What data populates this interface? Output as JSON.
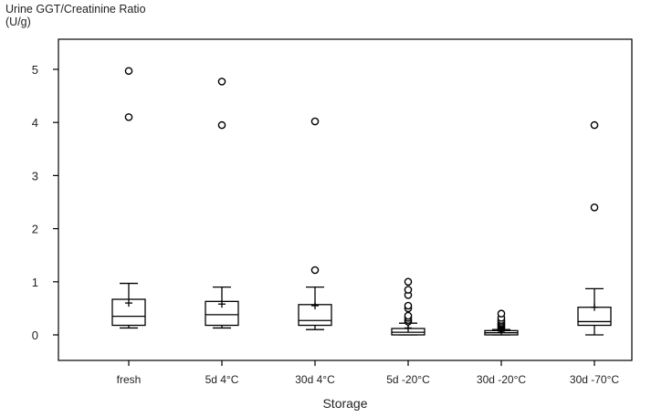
{
  "chart_data": {
    "type": "box",
    "title": "",
    "ylabel_lines": [
      "Urine GGT/Creatinine Ratio",
      "(U/g)"
    ],
    "xlabel": "Storage",
    "ylim": [
      -0.5,
      5.55
    ],
    "yticks": [
      0,
      1,
      2,
      3,
      4,
      5
    ],
    "grid": false,
    "categories": [
      "fresh",
      "5d 4°C",
      "30d 4°C",
      "5d -20°C",
      "30d -20°C",
      "30d -70°C"
    ],
    "boxes": [
      {
        "category": "fresh",
        "whisker_low": 0.13,
        "q1": 0.18,
        "median": 0.35,
        "mean": 0.6,
        "q3": 0.67,
        "whisker_high": 0.97,
        "outliers": [
          4.1,
          4.97
        ]
      },
      {
        "category": "5d 4°C",
        "whisker_low": 0.13,
        "q1": 0.18,
        "median": 0.38,
        "mean": 0.58,
        "q3": 0.63,
        "whisker_high": 0.9,
        "outliers": [
          3.95,
          4.77
        ]
      },
      {
        "category": "30d 4°C",
        "whisker_low": 0.1,
        "q1": 0.18,
        "median": 0.27,
        "mean": 0.55,
        "q3": 0.57,
        "whisker_high": 0.9,
        "outliers": [
          1.22,
          4.02
        ]
      },
      {
        "category": "5d -20°C",
        "whisker_low": 0.0,
        "q1": 0.0,
        "median": 0.05,
        "mean": 0.13,
        "q3": 0.12,
        "whisker_high": 0.22,
        "outliers": [
          0.25,
          0.28,
          0.32,
          0.36,
          0.5,
          0.55,
          0.75,
          0.85,
          1.0
        ]
      },
      {
        "category": "30d -20°C",
        "whisker_low": 0.0,
        "q1": 0.0,
        "median": 0.04,
        "mean": 0.07,
        "q3": 0.08,
        "whisker_high": 0.1,
        "outliers": [
          0.12,
          0.14,
          0.16,
          0.18,
          0.2,
          0.22,
          0.25,
          0.28,
          0.32,
          0.4
        ]
      },
      {
        "category": "30d -70°C",
        "whisker_low": 0.0,
        "q1": 0.18,
        "median": 0.25,
        "mean": 0.52,
        "q3": 0.52,
        "whisker_high": 0.87,
        "outliers": [
          2.4,
          3.95
        ]
      }
    ]
  }
}
